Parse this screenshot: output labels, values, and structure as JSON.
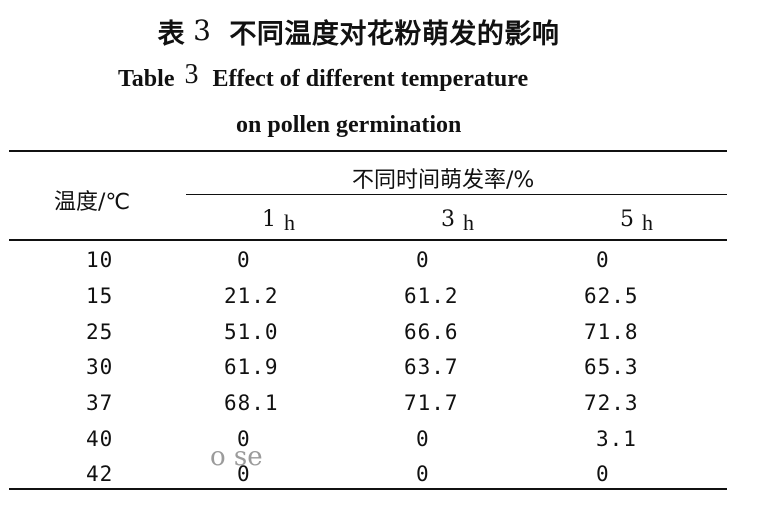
{
  "title": {
    "cn_label": "表",
    "cn_number": "3",
    "cn_text": "不同温度对花粉萌发的影响",
    "en_label": "Table",
    "en_number": "3",
    "en_text_line1": "Effect of different temperature",
    "en_text_line2": "on pollen germination"
  },
  "header": {
    "temperature": "温度/℃",
    "group": "不同时间萌发率/%",
    "times": [
      {
        "value": "1",
        "unit": "h"
      },
      {
        "value": "3",
        "unit": "h"
      },
      {
        "value": "5",
        "unit": "h"
      }
    ]
  },
  "rows": [
    {
      "temp": "10",
      "h1": "0",
      "h3": "0",
      "h5": "0"
    },
    {
      "temp": "15",
      "h1": "21.2",
      "h3": "61.2",
      "h5": "62.5"
    },
    {
      "temp": "25",
      "h1": "51.0",
      "h3": "66.6",
      "h5": "71.8"
    },
    {
      "temp": "30",
      "h1": "61.9",
      "h3": "63.7",
      "h5": "65.3"
    },
    {
      "temp": "37",
      "h1": "68.1",
      "h3": "71.7",
      "h5": "72.3"
    },
    {
      "temp": "40",
      "h1": "0",
      "h3": "0",
      "h5": "3.1"
    },
    {
      "temp": "42",
      "h1": "0",
      "h3": "0",
      "h5": "0"
    }
  ],
  "watermark": "o se"
}
